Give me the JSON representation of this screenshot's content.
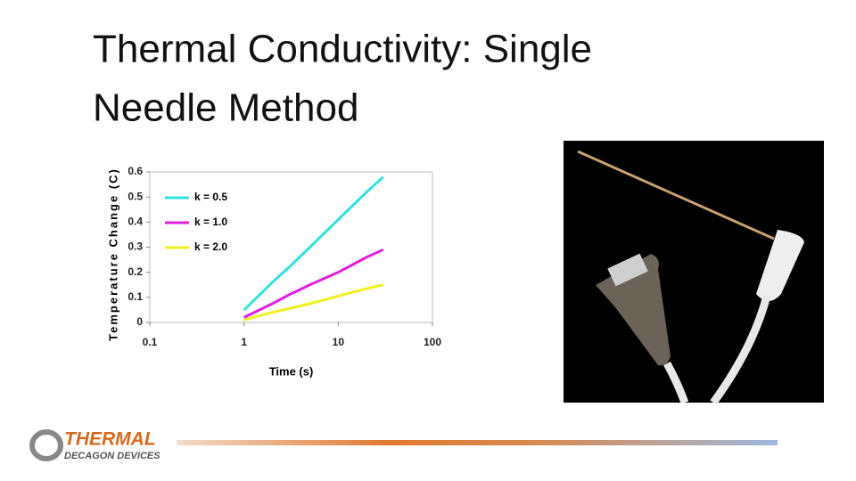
{
  "slide_title_lines": [
    "Thermal Conductivity: Single",
    "Needle Method"
  ],
  "chart_data": {
    "type": "line",
    "x_label": "Time (s)",
    "y_label": "Temperature Change (C)",
    "x": [
      1,
      2,
      3,
      5,
      10,
      20,
      30
    ],
    "series": [
      {
        "name": "k = 0.5",
        "color": "#33e0e0",
        "values": [
          0.05,
          0.16,
          0.22,
          0.3,
          0.41,
          0.52,
          0.58
        ]
      },
      {
        "name": "k = 1.0",
        "color": "#e020e0",
        "values": [
          0.02,
          0.075,
          0.11,
          0.15,
          0.2,
          0.26,
          0.29
        ]
      },
      {
        "name": "k = 2.0",
        "color": "#f0f020",
        "values": [
          0.01,
          0.04,
          0.055,
          0.075,
          0.105,
          0.135,
          0.15
        ]
      }
    ],
    "xlim": [
      0.1,
      100
    ],
    "xticks": [
      0.1,
      1,
      10,
      100
    ],
    "xscale": "log",
    "ylim": [
      0,
      0.6
    ],
    "yticks": [
      0,
      0.1,
      0.2,
      0.3,
      0.4,
      0.5,
      0.6
    ],
    "grid": false,
    "legend": "upper left"
  },
  "logo": {
    "name": "THERMAL",
    "sub": "DECAGON DEVICES"
  }
}
